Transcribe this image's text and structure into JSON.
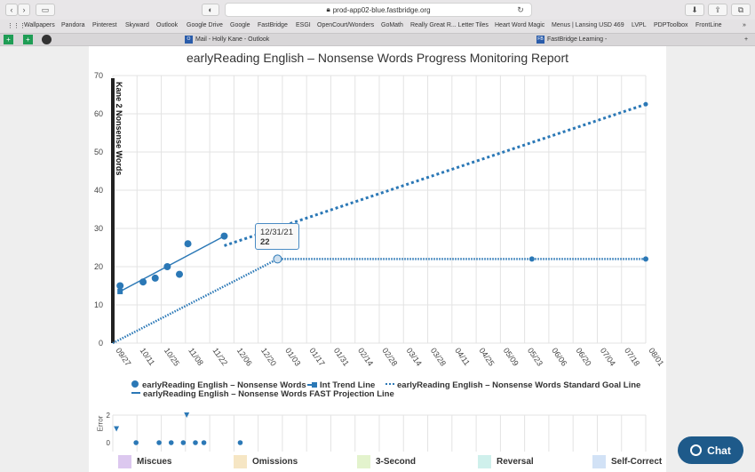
{
  "browser": {
    "url": "prod-app02-blue.fastbridge.org",
    "bookmarks": [
      "Wallpapers",
      "Pandora",
      "Pinterest",
      "Skyward",
      "Outlook",
      "Google Drive",
      "Google",
      "FastBridge",
      "ESGI",
      "OpenCourt/Wonders",
      "GoMath",
      "Really Great R... Letter Tiles",
      "Heart Word Magic",
      "Menus | Lansing USD 469",
      "LVPL",
      "PDPToolbox",
      "FrontLine"
    ],
    "tabs": [
      {
        "label": "Mail - Holly Kane - Outlook",
        "favicon": "O"
      },
      {
        "label": "FastBridge Learning -",
        "favicon": "FB"
      }
    ]
  },
  "chart_data": {
    "type": "line",
    "title": "earlyReading English – Nonsense Words Progress Monitoring Report",
    "ylabel": "Kane 2 Nonsense Words",
    "ylim": [
      0,
      70
    ],
    "yticks": [
      0,
      10,
      20,
      30,
      40,
      50,
      60,
      70
    ],
    "x_categories": [
      "09/27",
      "10/11",
      "10/25",
      "11/08",
      "11/22",
      "12/06",
      "12/20",
      "01/03",
      "01/17",
      "01/31",
      "02/14",
      "02/28",
      "03/14",
      "03/28",
      "04/11",
      "04/25",
      "05/09",
      "05/23",
      "06/06",
      "06/20",
      "07/04",
      "07/18",
      "08/01"
    ],
    "series": [
      {
        "name": "earlyReading English – Nonsense Words",
        "kind": "scores",
        "points": [
          [
            0.3,
            15
          ],
          [
            1.25,
            16
          ],
          [
            1.75,
            17
          ],
          [
            2.25,
            20
          ],
          [
            2.75,
            18
          ],
          [
            3.1,
            26
          ],
          [
            4.6,
            28
          ]
        ]
      },
      {
        "name": "Int Trend Line",
        "kind": "trend",
        "points": [
          [
            0.3,
            13.5
          ],
          [
            4.6,
            28
          ]
        ]
      },
      {
        "name": "earlyReading English – Nonsense Words Standard Goal Line",
        "kind": "goal",
        "points": [
          [
            0,
            0
          ],
          [
            6.8,
            22
          ],
          [
            17.3,
            22
          ],
          [
            22,
            22
          ]
        ]
      },
      {
        "name": "earlyReading English – Nonsense Words FAST Projection Line",
        "kind": "projection",
        "points": [
          [
            4.6,
            25.5
          ],
          [
            22,
            62.5
          ]
        ]
      }
    ],
    "tooltip": {
      "date": "12/31/21",
      "value": "22"
    },
    "error_chart": {
      "ylabel": "Error",
      "yticks": [
        0,
        2
      ],
      "points": [
        [
          0.3,
          0
        ],
        [
          1.25,
          0
        ],
        [
          1.75,
          0
        ],
        [
          2.25,
          0
        ],
        [
          2.75,
          0
        ],
        [
          3.1,
          0
        ],
        [
          4.6,
          0
        ]
      ],
      "markers": [
        [
          0.15,
          1
        ],
        [
          3.05,
          2
        ]
      ]
    },
    "grid": true
  },
  "legend": {
    "scores": "earlyReading English – Nonsense Words",
    "trend": "Int Trend Line",
    "goal": "earlyReading English – Nonsense Words Standard Goal Line",
    "projection": "earlyReading English – Nonsense Words FAST Projection Line"
  },
  "error_categories": [
    {
      "label": "Miscues",
      "color": "#dcc8ef"
    },
    {
      "label": "Omissions",
      "color": "#f6e6c4"
    },
    {
      "label": "3-Second",
      "color": "#e3f3cd"
    },
    {
      "label": "Reversal",
      "color": "#cff0ec"
    },
    {
      "label": "Self-Correct",
      "color": "#d2e2f6"
    }
  ],
  "chat": {
    "label": "Chat"
  },
  "colors": {
    "series": "#2b78b6"
  }
}
